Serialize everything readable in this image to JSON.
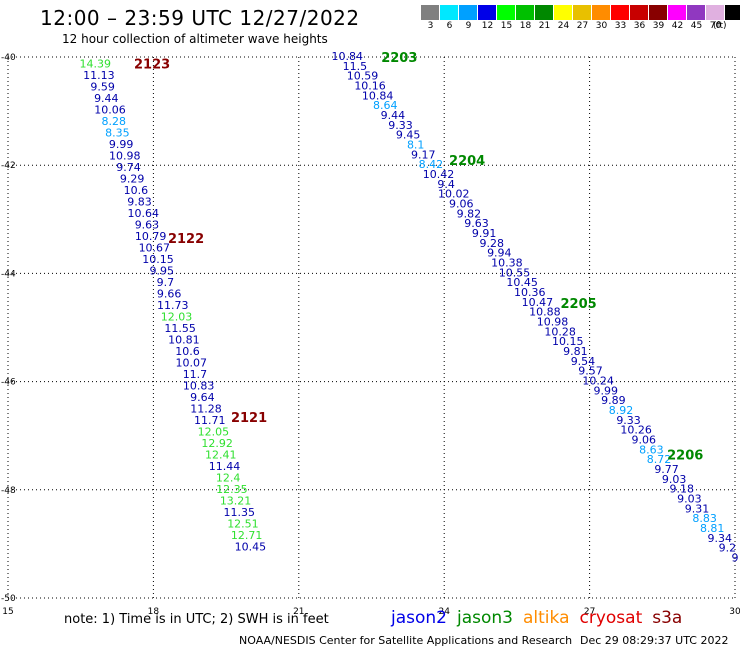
{
  "header": {
    "title": "12:00 – 23:59 UTC 12/27/2022",
    "subtitle": "12 hour collection of altimeter wave heights"
  },
  "colorbar": {
    "unit": "(ft)",
    "colors": [
      "#808080",
      "#00e8ff",
      "#00a0ff",
      "#0000e8",
      "#00ff00",
      "#00c000",
      "#008800",
      "#ffff00",
      "#e8c000",
      "#ff8c00",
      "#ff0000",
      "#c80000",
      "#880000",
      "#ff00ff",
      "#9038c0",
      "#e0b0e0",
      "#000000"
    ],
    "labels": [
      "3",
      "6",
      "9",
      "12",
      "15",
      "18",
      "21",
      "24",
      "27",
      "30",
      "33",
      "36",
      "39",
      "42",
      "45",
      "70"
    ]
  },
  "chart_data": {
    "type": "scatter",
    "title": "12:00 – 23:59 UTC 12/27/2022",
    "subtitle": "12 hour collection of altimeter wave heights",
    "xlim": [
      15,
      30
    ],
    "ylim": [
      -50,
      -40
    ],
    "x_ticks": [
      "15",
      "18",
      "21",
      "24",
      "27",
      "30"
    ],
    "y_ticks": [
      "-40",
      "-42",
      "-44",
      "-46",
      "-48",
      "-50"
    ],
    "grid": true,
    "color_scale": {
      "unit": "ft",
      "bin_edges": [
        3,
        6,
        9,
        12,
        15,
        18,
        21,
        24,
        27,
        30,
        33,
        36,
        39,
        42,
        45,
        70
      ]
    },
    "legend": [
      "jason2",
      "jason3",
      "altika",
      "cryosat",
      "s3a"
    ],
    "track_labels": [
      {
        "label": "2123",
        "x": 17.6,
        "y": -40.12,
        "color": "#880000"
      },
      {
        "label": "2122",
        "x": 18.3,
        "y": -43.35,
        "color": "#880000"
      },
      {
        "label": "2121",
        "x": 19.6,
        "y": -46.65,
        "color": "#880000"
      },
      {
        "label": "2203",
        "x": 22.7,
        "y": -40.0,
        "color": "#008800"
      },
      {
        "label": "2204",
        "x": 24.1,
        "y": -41.9,
        "color": "#008800"
      },
      {
        "label": "2205",
        "x": 26.4,
        "y": -44.55,
        "color": "#008800"
      },
      {
        "label": "2206",
        "x": 28.6,
        "y": -47.35,
        "color": "#008800"
      }
    ],
    "series": [
      {
        "name": "2123 / 2122 / 2121",
        "color": "#0000aa",
        "start": [
          16.8,
          -40.12
        ],
        "end": [
          20.0,
          -49.05
        ],
        "values": [
          14.39,
          11.13,
          9.59,
          9.44,
          10.06,
          8.28,
          8.35,
          9.99,
          10.98,
          9.74,
          9.29,
          10.6,
          9.83,
          10.64,
          9.63,
          10.79,
          10.67,
          10.15,
          9.95,
          9.7,
          9.66,
          11.73,
          12.03,
          11.55,
          10.81,
          10.6,
          10.07,
          11.7,
          10.83,
          9.64,
          11.28,
          11.71,
          12.05,
          12.92,
          12.41,
          11.44,
          12.4,
          12.35,
          13.21,
          11.35,
          12.51,
          12.71,
          10.45
        ]
      },
      {
        "name": "2203 / 2204 / 2205 / 2206",
        "color": "#0000aa",
        "start": [
          22.0,
          -39.98
        ],
        "end": [
          30.0,
          -49.25
        ],
        "values": [
          10.84,
          11.5,
          10.59,
          10.16,
          10.84,
          8.64,
          9.44,
          9.33,
          9.45,
          8.1,
          9.17,
          8.42,
          10.42,
          9.4,
          10.02,
          9.06,
          9.82,
          9.63,
          9.91,
          9.28,
          9.94,
          10.38,
          10.55,
          10.45,
          10.36,
          10.47,
          10.88,
          10.98,
          10.28,
          10.15,
          9.81,
          9.54,
          9.57,
          10.24,
          9.99,
          9.89,
          8.92,
          9.33,
          10.26,
          9.06,
          8.63,
          8.72,
          9.77,
          9.03,
          9.18,
          9.03,
          9.31,
          8.83,
          8.81,
          9.34,
          9.2,
          9
        ]
      }
    ]
  },
  "footer": {
    "note": "note:  1) Time is in UTC;  2) SWH is in feet",
    "legend": [
      {
        "name": "jason2",
        "color": "#0000e8"
      },
      {
        "name": "jason3",
        "color": "#008800"
      },
      {
        "name": "altika",
        "color": "#ff8c00"
      },
      {
        "name": "cryosat",
        "color": "#e00000"
      },
      {
        "name": "s3a",
        "color": "#880000"
      }
    ],
    "credit": "NOAA/NESDIS Center for Satellite Applications and Research",
    "timestamp": "Dec 29 08:29:37 UTC 2022"
  }
}
